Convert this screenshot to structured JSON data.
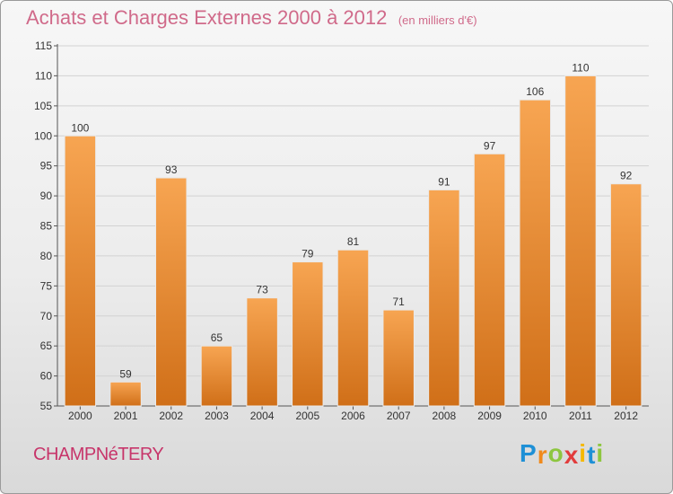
{
  "chart_data": {
    "type": "bar",
    "title": "Achats et Charges Externes 2000 à 2012",
    "unit": "(en milliers d'€)",
    "categories": [
      "2000",
      "2001",
      "2002",
      "2003",
      "2004",
      "2005",
      "2006",
      "2007",
      "2008",
      "2009",
      "2010",
      "2011",
      "2012"
    ],
    "values": [
      100,
      59,
      93,
      65,
      73,
      79,
      81,
      71,
      91,
      97,
      106,
      110,
      92
    ],
    "ylim": [
      55,
      115
    ],
    "yticks": [
      55,
      60,
      65,
      70,
      75,
      80,
      85,
      90,
      95,
      100,
      105,
      110,
      115
    ],
    "grid": true,
    "bar_color_top": "#f7a552",
    "bar_color_bottom": "#d06f18"
  },
  "commune": "CHAMPNéTERY",
  "logo": {
    "letters": [
      "P",
      "r",
      "o",
      "x",
      "i",
      "t",
      "i"
    ],
    "colors": [
      "#1e90d6",
      "#f08a1c",
      "#8dc63f",
      "#e23c3c",
      "#f5b800",
      "#1e90d6",
      "#8dc63f"
    ]
  }
}
